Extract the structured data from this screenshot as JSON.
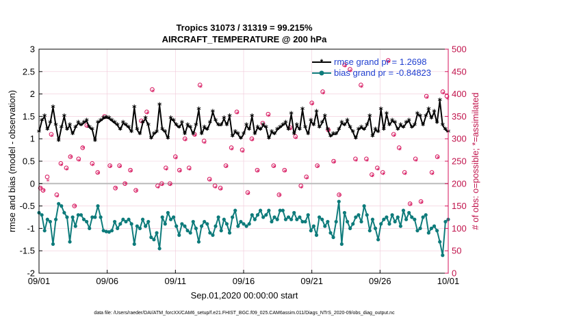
{
  "chart_data": {
    "type": "line",
    "title_line1": "Tropics 31073 / 31319 = 99.215%",
    "title_line2": "AIRCRAFT_TEMPERATURE @ 200 hPa",
    "xlabel": "Sep.01,2020 00:00:00 start",
    "ylabel_left": "rmse and bias (model - observation)",
    "ylabel_right": "# of obs: o=possible; *=assimilated",
    "x_ticks": [
      "09/01",
      "09/06",
      "09/11",
      "09/16",
      "09/21",
      "09/26",
      "10/01"
    ],
    "x_range_days": [
      0,
      30
    ],
    "y_left_ticks": [
      "3",
      "2.5",
      "2",
      "1.5",
      "1",
      "0.5",
      "0",
      "-0.5",
      "-1",
      "-1.5",
      "-2"
    ],
    "y_left_range": [
      -2,
      3
    ],
    "y_right_ticks": [
      "500",
      "450",
      "400",
      "350",
      "300",
      "250",
      "200",
      "150",
      "100",
      "50",
      "0"
    ],
    "y_right_range": [
      0,
      500
    ],
    "zero_line": 0,
    "footer": "data file: /Users/raeder/DAI/ATM_forcXX/CAM6_setup/f.e21.FHIST_BGC.f09_025.CAM6assim.011/Diags_NTrS_2020-09/obs_diag_output.nc",
    "colors": {
      "rmse": "#000000",
      "bias": "#0e7b7b",
      "obs": "#d6105a",
      "zero": "#bbbbbb"
    },
    "series": [
      {
        "name": "rmse",
        "legend": "rmse grand pr = 1.2698",
        "values": [
          1.15,
          1.4,
          1.5,
          1.2,
          1.35,
          1.7,
          1.3,
          0.95,
          1.25,
          1.5,
          1.2,
          1.3,
          1.1,
          1.25,
          1.35,
          1.3,
          1.35,
          1.4,
          1.25,
          1.2,
          0.95,
          1.35,
          1.4,
          1.45,
          1.47,
          1.45,
          1.4,
          1.35,
          1.3,
          1.2,
          1.35,
          1.3,
          1.25,
          1.15,
          1.7,
          1.2,
          1.1,
          1.35,
          1.45,
          1.3,
          1.0,
          1.1,
          1.15,
          1.75,
          1.2,
          1.15,
          1.0,
          1.45,
          1.4,
          1.3,
          1.25,
          1.35,
          1.1,
          1.3,
          1.25,
          1.1,
          1.3,
          1.65,
          1.1,
          1.25,
          1.2,
          1.35,
          1.6,
          1.4,
          1.3,
          1.3,
          1.45,
          1.3,
          1.5,
          1.05,
          1.15,
          1.1,
          1.0,
          1.1,
          1.3,
          1.2,
          1.5,
          1.1,
          1.25,
          1.2,
          1.3,
          1.25,
          1.0,
          1.15,
          1.1,
          1.2,
          1.25,
          1.3,
          1.35,
          1.2,
          1.55,
          1.1,
          1.3,
          1.2,
          1.65,
          1.25,
          1.1,
          1.4,
          1.3,
          1.6,
          1.25,
          1.35,
          1.5,
          1.2,
          1.05,
          1.1,
          1.1,
          1.2,
          1.35,
          1.3,
          1.4,
          1.25,
          1.15,
          1.0,
          1.2,
          1.25,
          1.2,
          1.3,
          1.5,
          1.05,
          1.2,
          1.15,
          1.65,
          1.2,
          1.55,
          1.3,
          1.4,
          1.35,
          1.2,
          1.3,
          1.25,
          1.35,
          1.4,
          1.25,
          1.3,
          1.55,
          1.5,
          1.3,
          1.5,
          1.65,
          1.45,
          1.6,
          1.35,
          1.85,
          1.3,
          1.2,
          1.15
        ]
      },
      {
        "name": "bias",
        "legend": "bias grand pr = -0.84823",
        "values": [
          -0.65,
          -0.7,
          -1.05,
          -0.8,
          -0.85,
          -1.35,
          -0.8,
          -0.45,
          -0.5,
          -0.65,
          -0.75,
          -1.3,
          -0.75,
          -0.95,
          -0.7,
          -0.7,
          -0.8,
          -0.85,
          -1.0,
          -0.75,
          -0.75,
          -0.5,
          -0.75,
          -1.05,
          -1.07,
          -1.08,
          -1.05,
          -0.85,
          -1.0,
          -0.9,
          -0.8,
          -0.85,
          -0.8,
          -0.9,
          -1.35,
          -0.95,
          -1.0,
          -0.8,
          -0.95,
          -0.85,
          -1.2,
          -1.25,
          -1.1,
          -1.45,
          -0.75,
          -0.9,
          -0.65,
          -0.8,
          -0.75,
          -0.95,
          -1.15,
          -0.9,
          -0.95,
          -1.05,
          -1.1,
          -0.85,
          -1.0,
          -1.3,
          -0.95,
          -0.85,
          -0.9,
          -1.1,
          -1.15,
          -0.95,
          -0.75,
          -1.05,
          -0.8,
          -0.9,
          -1.1,
          -0.75,
          -0.6,
          -0.95,
          -0.85,
          -0.9,
          -0.95,
          -0.9,
          -0.7,
          -0.8,
          -0.7,
          -0.6,
          -0.75,
          -0.7,
          -0.6,
          -0.85,
          -0.75,
          -0.8,
          -0.6,
          -0.6,
          -0.8,
          -0.75,
          -0.8,
          -0.65,
          -0.8,
          -0.75,
          -0.85,
          -0.85,
          -0.7,
          -1.05,
          -0.95,
          -1.15,
          -0.75,
          -0.8,
          -0.95,
          -0.85,
          -1.1,
          -1.2,
          -0.85,
          -0.4,
          -1.35,
          -0.65,
          -0.85,
          -1.0,
          -0.9,
          -0.75,
          -0.7,
          -0.85,
          -0.5,
          -0.7,
          -1.05,
          -0.8,
          -1.0,
          -1.25,
          -0.9,
          -0.8,
          -0.75,
          -0.9,
          -0.7,
          -0.85,
          -0.75,
          -0.95,
          -0.6,
          -0.8,
          -0.65,
          -0.75,
          -0.8,
          -1.05,
          -1.0,
          -0.75,
          -0.7,
          -1.1,
          -1.0,
          -0.95,
          -1.05,
          -1.3,
          -1.6,
          -0.85,
          -0.8
        ]
      },
      {
        "name": "obs_possible",
        "axis": "right",
        "x": [
          0.1,
          0.3,
          0.6,
          0.9,
          1.3,
          1.6,
          2.0,
          2.3,
          2.6,
          2.9,
          3.2,
          3.5,
          3.9,
          4.3,
          4.8,
          5.2,
          5.6,
          5.9,
          6.3,
          6.7,
          7.1,
          7.5,
          7.9,
          8.3,
          8.7,
          9.0,
          9.3,
          9.6,
          10.0,
          10.3,
          10.7,
          11.0,
          11.4,
          11.8,
          12.1,
          12.5,
          12.9,
          13.3,
          13.7,
          14.1,
          14.5,
          14.9,
          15.3,
          15.6,
          16.0,
          16.4,
          16.8,
          17.2,
          17.6,
          18.0,
          18.4,
          18.8,
          19.2,
          19.6,
          20.0,
          20.4,
          20.8,
          21.2,
          21.6,
          22.0,
          22.4,
          22.8,
          23.2,
          23.6,
          24.0,
          24.4,
          24.8,
          25.2,
          25.6,
          26.0,
          26.4,
          26.8,
          27.2,
          27.6,
          28.0,
          28.4,
          28.8,
          29.2,
          29.6,
          29.9
        ],
        "values": [
          190,
          185,
          215,
          310,
          175,
          245,
          235,
          260,
          150,
          255,
          280,
          330,
          245,
          225,
          350,
          240,
          190,
          240,
          200,
          230,
          185,
          340,
          360,
          410,
          195,
          200,
          235,
          200,
          260,
          230,
          300,
          235,
          310,
          420,
          295,
          210,
          195,
          190,
          240,
          280,
          360,
          275,
          180,
          300,
          230,
          335,
          355,
          240,
          175,
          230,
          325,
          305,
          195,
          215,
          380,
          240,
          405,
          320,
          250,
          175,
          465,
          455,
          255,
          420,
          255,
          220,
          235,
          225,
          475,
          310,
          280,
          225,
          155,
          255,
          160,
          395,
          225,
          260,
          405,
          395
        ]
      },
      {
        "name": "obs_assimilated",
        "axis": "right",
        "x": [
          0.15,
          0.35,
          0.65,
          0.95,
          1.35,
          1.65,
          2.05,
          2.35,
          2.65,
          2.95,
          3.25,
          3.55,
          3.95,
          4.35,
          4.85,
          5.25,
          5.65,
          5.95,
          6.35,
          6.75,
          7.15,
          7.55,
          7.95,
          8.35,
          8.75,
          9.05,
          9.35,
          9.65,
          10.05,
          10.35,
          10.75,
          11.05,
          11.45,
          11.85,
          12.15,
          12.55,
          12.95,
          13.35,
          13.75,
          14.15,
          14.55,
          14.95,
          15.35,
          15.65,
          16.05,
          16.45,
          16.85,
          17.25,
          17.65,
          18.05,
          18.45,
          18.85,
          19.25,
          19.65,
          20.05,
          20.45,
          20.85,
          21.25,
          21.65,
          22.05,
          22.45,
          22.85,
          23.25,
          23.65,
          24.05,
          24.45,
          24.85,
          25.25,
          25.65,
          26.05,
          26.45,
          26.85,
          27.25,
          27.65,
          28.05,
          28.45,
          28.85,
          29.25,
          29.65,
          29.95
        ],
        "values": [
          188,
          183,
          205,
          305,
          170,
          240,
          230,
          258,
          148,
          250,
          278,
          326,
          240,
          222,
          345,
          236,
          188,
          236,
          198,
          226,
          182,
          335,
          356,
          405,
          190,
          196,
          230,
          196,
          255,
          226,
          296,
          230,
          306,
          415,
          290,
          206,
          190,
          186,
          236,
          275,
          356,
          270,
          176,
          296,
          226,
          330,
          350,
          236,
          172,
          226,
          320,
          300,
          190,
          210,
          376,
          236,
          400,
          316,
          246,
          172,
          460,
          450,
          250,
          415,
          250,
          216,
          230,
          220,
          470,
          306,
          275,
          220,
          152,
          250,
          156,
          390,
          220,
          256,
          400,
          388
        ]
      }
    ]
  }
}
